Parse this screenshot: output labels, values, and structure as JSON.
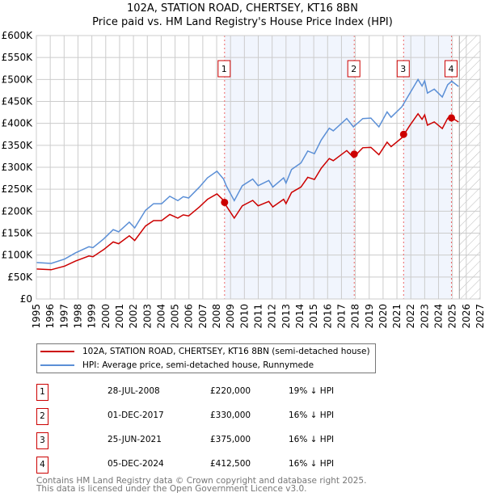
{
  "chart_data": {
    "type": "line",
    "title": "102A, STATION ROAD, CHERTSEY, KT16 8BN",
    "subtitle": "Price paid vs. HM Land Registry's House Price Index (HPI)",
    "xlim": [
      1995,
      2027
    ],
    "ylim": [
      0,
      600000
    ],
    "yticks": [
      0,
      50000,
      100000,
      150000,
      200000,
      250000,
      300000,
      350000,
      400000,
      450000,
      500000,
      550000,
      600000
    ],
    "ytick_labels": [
      "£0",
      "£50K",
      "£100K",
      "£150K",
      "£200K",
      "£250K",
      "£300K",
      "£350K",
      "£400K",
      "£450K",
      "£500K",
      "£550K",
      "£600K"
    ],
    "xtick_labels": [
      "1995",
      "1996",
      "1997",
      "1998",
      "1999",
      "2000",
      "2001",
      "2002",
      "2003",
      "2004",
      "2005",
      "2006",
      "2007",
      "2008",
      "2009",
      "2010",
      "2011",
      "2012",
      "2013",
      "2014",
      "2015",
      "2016",
      "2017",
      "2018",
      "2019",
      "2020",
      "2021",
      "2022",
      "2023",
      "2024",
      "2025",
      "2026",
      "2027"
    ],
    "grid": true,
    "forecast_hatch_from": 2025.5,
    "series": [
      {
        "name": "HPI: Average price, semi-detached house, Runnymede",
        "color": "#5b8fd6",
        "x": [
          1995.0,
          1996.07,
          1997.04,
          1997.82,
          1998.79,
          1999.08,
          1999.86,
          2000.54,
          2000.93,
          2001.7,
          2002.09,
          2002.87,
          2003.45,
          2004.03,
          2004.62,
          2005.2,
          2005.59,
          2005.98,
          2006.76,
          2007.34,
          2008.02,
          2008.5,
          2008.69,
          2009.27,
          2009.85,
          2010.6,
          2010.99,
          2011.76,
          2012.05,
          2012.83,
          2013.0,
          2013.4,
          2014.08,
          2014.57,
          2015.05,
          2015.54,
          2016.12,
          2016.41,
          2017.38,
          2017.86,
          2018.54,
          2019.12,
          2019.7,
          2020.29,
          2020.58,
          2021.36,
          2021.94,
          2022.52,
          2022.81,
          2023.0,
          2023.2,
          2023.69,
          2024.27,
          2024.66,
          2024.95,
          2025.44
        ],
        "y": [
          83000,
          81000,
          91000,
          105000,
          119000,
          117000,
          137000,
          158000,
          153000,
          175000,
          162000,
          202000,
          217000,
          217000,
          234000,
          224000,
          233000,
          230000,
          255000,
          276000,
          291000,
          273000,
          258000,
          224000,
          258000,
          273000,
          258000,
          270000,
          255000,
          276000,
          264000,
          295000,
          310000,
          337000,
          331000,
          362000,
          389000,
          383000,
          411000,
          392000,
          411000,
          412000,
          392000,
          426000,
          414000,
          438000,
          469000,
          500000,
          485000,
          497000,
          469000,
          478000,
          460000,
          488000,
          496000,
          484000
        ]
      },
      {
        "name": "102A, STATION ROAD, CHERTSEY, KT16 8BN (semi-detached house)",
        "color": "#cc0000",
        "derived_from": "HPI indexed to sale prices"
      }
    ],
    "sales": [
      {
        "num": "1",
        "x": 2008.57,
        "date": "28-JUL-2008",
        "price": 220000,
        "price_label": "£220,000",
        "hpi": "19% ↓ HPI"
      },
      {
        "num": "2",
        "x": 2017.92,
        "date": "01-DEC-2017",
        "price": 330000,
        "price_label": "£330,000",
        "hpi": "16% ↓ HPI"
      },
      {
        "num": "3",
        "x": 2021.48,
        "date": "25-JUN-2021",
        "price": 375000,
        "price_label": "£375,000",
        "hpi": "16% ↓ HPI"
      },
      {
        "num": "4",
        "x": 2024.93,
        "date": "05-DEC-2024",
        "price": 412500,
        "price_label": "£412,500",
        "hpi": "16% ↓ HPI"
      }
    ]
  },
  "legend": {
    "property": "102A, STATION ROAD, CHERTSEY, KT16 8BN (semi-detached house)",
    "hpi": "HPI: Average price, semi-detached house, Runnymede"
  },
  "footer": {
    "line1": "Contains HM Land Registry data © Crown copyright and database right 2025.",
    "line2": "This data is licensed under the Open Government Licence v3.0."
  }
}
